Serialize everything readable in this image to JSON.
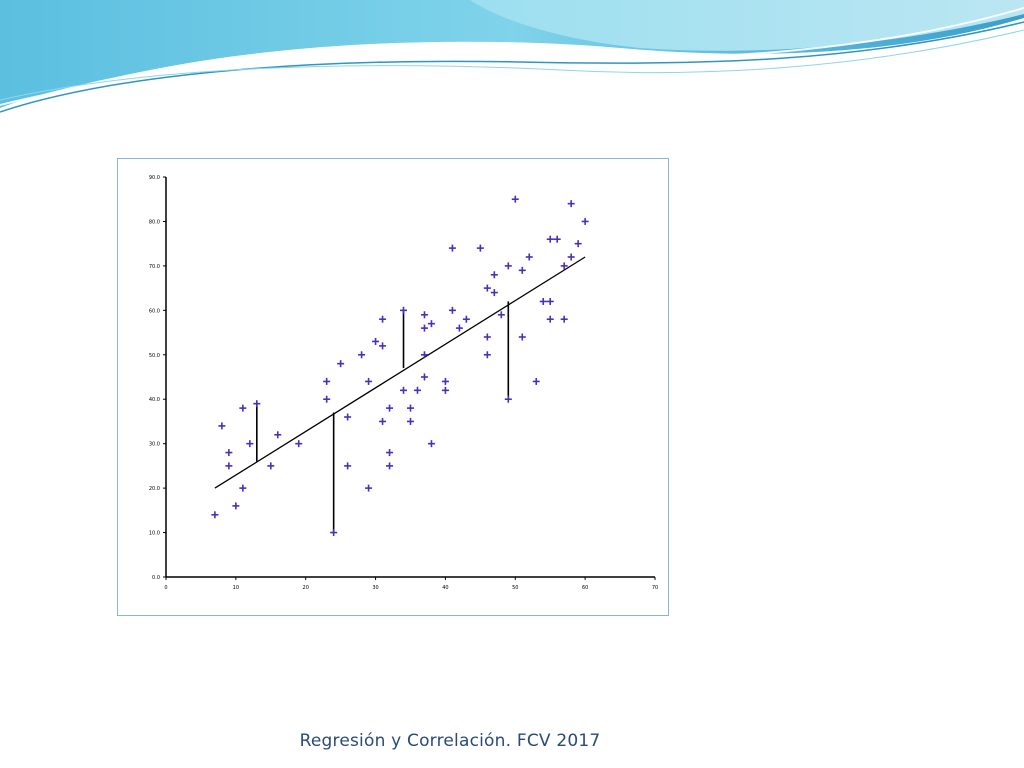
{
  "slide": {
    "footer": "Regresión y Correlación. FCV 2017"
  },
  "colors": {
    "accent": "#4aa3c9",
    "points": "#4b2fb8",
    "frame": "#8fb3d6"
  },
  "chart_data": {
    "type": "scatter",
    "title": "",
    "xlabel": "",
    "ylabel": "",
    "xlim": [
      0,
      70
    ],
    "ylim": [
      0,
      90
    ],
    "x_ticks": [
      0,
      10,
      20,
      30,
      40,
      50,
      60,
      70
    ],
    "y_ticks": [
      0,
      10,
      20,
      30,
      40,
      50,
      60,
      70,
      80,
      90
    ],
    "grid": false,
    "points": [
      {
        "x": 7,
        "y": 14
      },
      {
        "x": 8,
        "y": 34
      },
      {
        "x": 9,
        "y": 25
      },
      {
        "x": 9,
        "y": 28
      },
      {
        "x": 10,
        "y": 16
      },
      {
        "x": 11,
        "y": 20
      },
      {
        "x": 11,
        "y": 38
      },
      {
        "x": 12,
        "y": 30
      },
      {
        "x": 13,
        "y": 39
      },
      {
        "x": 15,
        "y": 25
      },
      {
        "x": 16,
        "y": 32
      },
      {
        "x": 19,
        "y": 30
      },
      {
        "x": 23,
        "y": 40
      },
      {
        "x": 23,
        "y": 44
      },
      {
        "x": 24,
        "y": 10
      },
      {
        "x": 25,
        "y": 48
      },
      {
        "x": 26,
        "y": 36
      },
      {
        "x": 26,
        "y": 25
      },
      {
        "x": 28,
        "y": 50
      },
      {
        "x": 29,
        "y": 20
      },
      {
        "x": 29,
        "y": 44
      },
      {
        "x": 30,
        "y": 53
      },
      {
        "x": 31,
        "y": 58
      },
      {
        "x": 31,
        "y": 35
      },
      {
        "x": 31,
        "y": 52
      },
      {
        "x": 32,
        "y": 25
      },
      {
        "x": 32,
        "y": 28
      },
      {
        "x": 32,
        "y": 38
      },
      {
        "x": 34,
        "y": 42
      },
      {
        "x": 34,
        "y": 60
      },
      {
        "x": 35,
        "y": 38
      },
      {
        "x": 35,
        "y": 35
      },
      {
        "x": 36,
        "y": 42
      },
      {
        "x": 37,
        "y": 56
      },
      {
        "x": 37,
        "y": 59
      },
      {
        "x": 37,
        "y": 45
      },
      {
        "x": 37,
        "y": 50
      },
      {
        "x": 38,
        "y": 57
      },
      {
        "x": 38,
        "y": 30
      },
      {
        "x": 40,
        "y": 44
      },
      {
        "x": 40,
        "y": 42
      },
      {
        "x": 41,
        "y": 74
      },
      {
        "x": 41,
        "y": 60
      },
      {
        "x": 42,
        "y": 56
      },
      {
        "x": 43,
        "y": 58
      },
      {
        "x": 45,
        "y": 74
      },
      {
        "x": 46,
        "y": 65
      },
      {
        "x": 46,
        "y": 54
      },
      {
        "x": 46,
        "y": 50
      },
      {
        "x": 47,
        "y": 68
      },
      {
        "x": 47,
        "y": 64
      },
      {
        "x": 48,
        "y": 59
      },
      {
        "x": 49,
        "y": 70
      },
      {
        "x": 49,
        "y": 40
      },
      {
        "x": 50,
        "y": 85
      },
      {
        "x": 51,
        "y": 69
      },
      {
        "x": 51,
        "y": 54
      },
      {
        "x": 52,
        "y": 72
      },
      {
        "x": 53,
        "y": 44
      },
      {
        "x": 54,
        "y": 62
      },
      {
        "x": 55,
        "y": 62
      },
      {
        "x": 55,
        "y": 58
      },
      {
        "x": 55,
        "y": 76
      },
      {
        "x": 56,
        "y": 76
      },
      {
        "x": 57,
        "y": 70
      },
      {
        "x": 57,
        "y": 58
      },
      {
        "x": 58,
        "y": 72
      },
      {
        "x": 58,
        "y": 84
      },
      {
        "x": 59,
        "y": 75
      },
      {
        "x": 60,
        "y": 80
      }
    ],
    "regression_line": {
      "x": [
        7,
        60
      ],
      "y": [
        20,
        72
      ]
    },
    "residual_segments": [
      {
        "x": 13,
        "y_from": 26,
        "y_to": 39
      },
      {
        "x": 24,
        "y_from": 37,
        "y_to": 10
      },
      {
        "x": 34,
        "y_from": 47,
        "y_to": 60
      },
      {
        "x": 49,
        "y_from": 62,
        "y_to": 40
      }
    ]
  }
}
